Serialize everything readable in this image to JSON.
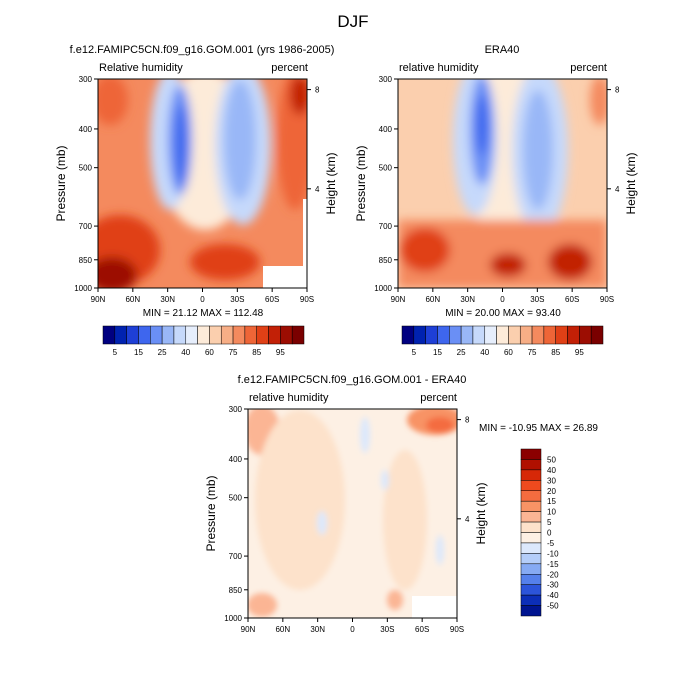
{
  "figure": {
    "title": "DJF"
  },
  "chart_data": [
    {
      "type": "heatmap",
      "title": "f.e12.FAMIPC5CN.f09_g16.GOM.001 (yrs 1986-2005)",
      "left_label": "Relative humidity",
      "right_label": "percent",
      "ylabel": "Pressure (mb)",
      "y2label": "Height (km)",
      "x_ticks": [
        "90N",
        "60N",
        "30N",
        "0",
        "30S",
        "60S",
        "90S"
      ],
      "y_ticks": [
        "300",
        "400",
        "500",
        "700",
        "850",
        "1000"
      ],
      "y2_ticks": [
        "8",
        "4"
      ],
      "stats": "MIN =  21.12  MAX = 112.48",
      "scale": "rh",
      "field": "model"
    },
    {
      "type": "heatmap",
      "title": "ERA40",
      "left_label": "relative humidity",
      "right_label": "percent",
      "ylabel": "Pressure (mb)",
      "y2label": "Height (km)",
      "x_ticks": [
        "90N",
        "60N",
        "30N",
        "0",
        "30S",
        "60S",
        "90S"
      ],
      "y_ticks": [
        "300",
        "400",
        "500",
        "700",
        "850",
        "1000"
      ],
      "y2_ticks": [
        "8",
        "4"
      ],
      "stats": "MIN =  20.00  MAX =  93.40",
      "scale": "rh",
      "field": "era"
    },
    {
      "type": "heatmap",
      "title": "f.e12.FAMIPC5CN.f09_g16.GOM.001 - ERA40",
      "left_label": "relative humidity",
      "right_label": "percent",
      "ylabel": "Pressure (mb)",
      "y2label": "Height (km)",
      "x_ticks": [
        "90N",
        "60N",
        "30N",
        "0",
        "30S",
        "60S",
        "90S"
      ],
      "y_ticks": [
        "300",
        "400",
        "500",
        "700",
        "850",
        "1000"
      ],
      "y2_ticks": [
        "8",
        "4"
      ],
      "stats": "MIN = -10.95  MAX =  26.89",
      "scale": "diff",
      "field": "diff"
    }
  ],
  "colorbars": {
    "rh": {
      "labels": [
        "5",
        "15",
        "25",
        "40",
        "60",
        "75",
        "85",
        "95"
      ],
      "colors": [
        "#000080",
        "#0022b0",
        "#1e3fd6",
        "#3e66ee",
        "#6a8ff5",
        "#99b7f7",
        "#c6d9fb",
        "#e6eefc",
        "#fdebd9",
        "#fbcfae",
        "#f7ae86",
        "#f48a5e",
        "#ee6537",
        "#e04016",
        "#c22006",
        "#9c0d02",
        "#7a0000"
      ]
    },
    "diff": {
      "labels": [
        "50",
        "40",
        "30",
        "20",
        "15",
        "10",
        "5",
        "0",
        "-5",
        "-10",
        "-15",
        "-20",
        "-30",
        "-40",
        "-50"
      ],
      "colors": [
        "#8b0000",
        "#b01000",
        "#d62808",
        "#ee4a1e",
        "#f46c3f",
        "#f89365",
        "#fbb594",
        "#fde2cb",
        "#fdf0e4",
        "#dce8fc",
        "#b4cdf9",
        "#86aaf3",
        "#5580eb",
        "#2c54da",
        "#0c2eb8",
        "#001490"
      ]
    }
  }
}
